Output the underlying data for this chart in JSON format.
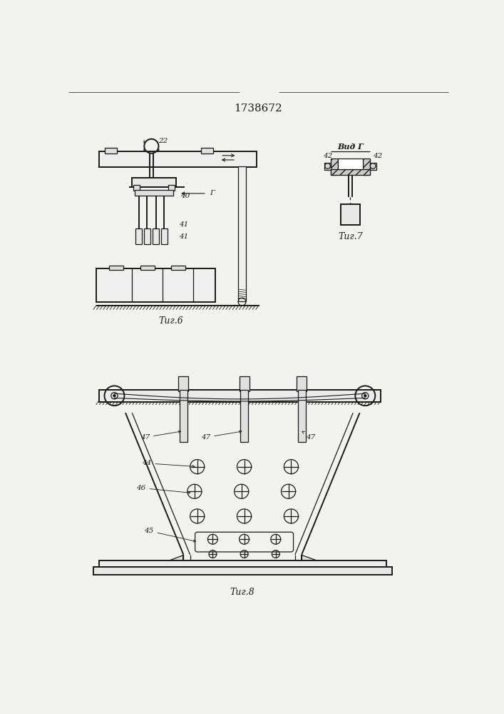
{
  "title": "1738672",
  "title_fontsize": 11,
  "fig_labels": {
    "fig6": "Τиг.6",
    "fig7": "Τиг.7",
    "fig8": "Τиг.8",
    "vid_g": "Вид Г"
  },
  "label_numbers": {
    "n22": "22",
    "n40": "40",
    "n41": "41",
    "n42": "42",
    "n44": "44",
    "n45": "45",
    "n46": "46",
    "n47": "47"
  },
  "line_color": "#1a1a1a",
  "bg_color": "#f2f2ee",
  "fontsize_labels": 7.5,
  "fontsize_fig": 9
}
